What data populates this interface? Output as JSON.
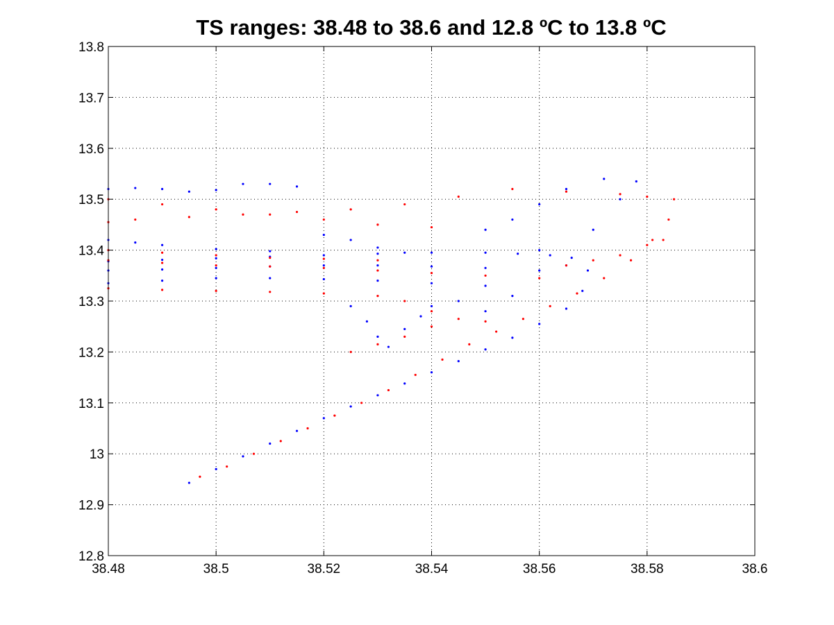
{
  "chart_data": {
    "type": "scatter",
    "title": "TS ranges: 38.48 to 38.6 and 12.8 ºC to 13.8 ºC",
    "xlabel": "",
    "ylabel": "",
    "xlim": [
      38.48,
      38.6
    ],
    "ylim": [
      12.8,
      13.8
    ],
    "x_ticks": [
      38.48,
      38.5,
      38.52,
      38.54,
      38.56,
      38.58,
      38.6
    ],
    "x_tick_labels": [
      "38.48",
      "38.5",
      "38.52",
      "38.54",
      "38.56",
      "38.58",
      "38.6"
    ],
    "y_ticks": [
      12.8,
      12.9,
      13.0,
      13.1,
      13.2,
      13.3,
      13.4,
      13.5,
      13.6,
      13.7,
      13.8
    ],
    "y_tick_labels": [
      "12.8",
      "12.9",
      "13",
      "13.1",
      "13.2",
      "13.3",
      "13.4",
      "13.5",
      "13.6",
      "13.7",
      "13.8"
    ],
    "grid": true,
    "series": [
      {
        "color": "#0000ff",
        "points": [
          [
            38.495,
            12.943
          ],
          [
            38.5,
            12.97
          ],
          [
            38.505,
            12.995
          ],
          [
            38.51,
            13.02
          ],
          [
            38.515,
            13.045
          ],
          [
            38.52,
            13.07
          ],
          [
            38.525,
            13.093
          ],
          [
            38.53,
            13.115
          ],
          [
            38.535,
            13.138
          ],
          [
            38.54,
            13.16
          ],
          [
            38.545,
            13.182
          ],
          [
            38.55,
            13.205
          ],
          [
            38.555,
            13.228
          ],
          [
            38.56,
            13.255
          ],
          [
            38.565,
            13.285
          ],
          [
            38.568,
            13.32
          ],
          [
            38.569,
            13.36
          ],
          [
            38.566,
            13.385
          ],
          [
            38.562,
            13.39
          ],
          [
            38.556,
            13.393
          ],
          [
            38.55,
            13.395
          ],
          [
            38.54,
            13.395
          ],
          [
            38.53,
            13.393
          ],
          [
            38.52,
            13.39
          ],
          [
            38.51,
            13.387
          ],
          [
            38.5,
            13.384
          ],
          [
            38.49,
            13.381
          ],
          [
            38.48,
            13.378
          ],
          [
            38.48,
            13.36
          ],
          [
            38.49,
            13.362
          ],
          [
            38.5,
            13.365
          ],
          [
            38.51,
            13.368
          ],
          [
            38.52,
            13.37
          ],
          [
            38.53,
            13.37
          ],
          [
            38.54,
            13.368
          ],
          [
            38.55,
            13.365
          ],
          [
            38.56,
            13.36
          ],
          [
            38.48,
            13.335
          ],
          [
            38.49,
            13.34
          ],
          [
            38.5,
            13.345
          ],
          [
            38.51,
            13.345
          ],
          [
            38.52,
            13.343
          ],
          [
            38.53,
            13.34
          ],
          [
            38.54,
            13.335
          ],
          [
            38.55,
            13.33
          ],
          [
            38.48,
            13.42
          ],
          [
            38.485,
            13.415
          ],
          [
            38.49,
            13.41
          ],
          [
            38.5,
            13.402
          ],
          [
            38.51,
            13.398
          ],
          [
            38.48,
            13.52
          ],
          [
            38.485,
            13.522
          ],
          [
            38.49,
            13.52
          ],
          [
            38.495,
            13.515
          ],
          [
            38.5,
            13.518
          ],
          [
            38.505,
            13.53
          ],
          [
            38.51,
            13.53
          ],
          [
            38.515,
            13.525
          ],
          [
            38.52,
            13.43
          ],
          [
            38.525,
            13.42
          ],
          [
            38.53,
            13.405
          ],
          [
            38.535,
            13.395
          ],
          [
            38.525,
            13.29
          ],
          [
            38.528,
            13.26
          ],
          [
            38.53,
            13.23
          ],
          [
            38.532,
            13.21
          ],
          [
            38.535,
            13.245
          ],
          [
            38.538,
            13.27
          ],
          [
            38.54,
            13.29
          ],
          [
            38.545,
            13.3
          ],
          [
            38.55,
            13.28
          ],
          [
            38.555,
            13.31
          ],
          [
            38.56,
            13.4
          ],
          [
            38.565,
            13.37
          ],
          [
            38.57,
            13.44
          ],
          [
            38.575,
            13.5
          ],
          [
            38.578,
            13.535
          ],
          [
            38.572,
            13.54
          ],
          [
            38.565,
            13.52
          ],
          [
            38.56,
            13.49
          ],
          [
            38.555,
            13.46
          ],
          [
            38.55,
            13.44
          ]
        ]
      },
      {
        "color": "#ff0000",
        "points": [
          [
            38.497,
            12.955
          ],
          [
            38.502,
            12.975
          ],
          [
            38.507,
            13.0
          ],
          [
            38.512,
            13.025
          ],
          [
            38.517,
            13.05
          ],
          [
            38.522,
            13.075
          ],
          [
            38.527,
            13.1
          ],
          [
            38.532,
            13.125
          ],
          [
            38.537,
            13.155
          ],
          [
            38.542,
            13.185
          ],
          [
            38.547,
            13.215
          ],
          [
            38.552,
            13.24
          ],
          [
            38.557,
            13.265
          ],
          [
            38.562,
            13.29
          ],
          [
            38.567,
            13.315
          ],
          [
            38.572,
            13.345
          ],
          [
            38.577,
            13.38
          ],
          [
            38.581,
            13.42
          ],
          [
            38.584,
            13.46
          ],
          [
            38.585,
            13.5
          ],
          [
            38.58,
            13.505
          ],
          [
            38.575,
            13.51
          ],
          [
            38.565,
            13.515
          ],
          [
            38.555,
            13.52
          ],
          [
            38.545,
            13.505
          ],
          [
            38.535,
            13.49
          ],
          [
            38.525,
            13.48
          ],
          [
            38.515,
            13.475
          ],
          [
            38.505,
            13.47
          ],
          [
            38.495,
            13.465
          ],
          [
            38.485,
            13.46
          ],
          [
            38.48,
            13.455
          ],
          [
            38.48,
            13.5
          ],
          [
            38.49,
            13.49
          ],
          [
            38.5,
            13.48
          ],
          [
            38.51,
            13.47
          ],
          [
            38.52,
            13.46
          ],
          [
            38.53,
            13.45
          ],
          [
            38.54,
            13.445
          ],
          [
            38.48,
            13.4
          ],
          [
            38.49,
            13.395
          ],
          [
            38.5,
            13.39
          ],
          [
            38.51,
            13.385
          ],
          [
            38.52,
            13.383
          ],
          [
            38.53,
            13.38
          ],
          [
            38.48,
            13.38
          ],
          [
            38.49,
            13.375
          ],
          [
            38.5,
            13.37
          ],
          [
            38.51,
            13.368
          ],
          [
            38.52,
            13.365
          ],
          [
            38.53,
            13.36
          ],
          [
            38.54,
            13.355
          ],
          [
            38.55,
            13.35
          ],
          [
            38.56,
            13.345
          ],
          [
            38.48,
            13.325
          ],
          [
            38.49,
            13.322
          ],
          [
            38.5,
            13.32
          ],
          [
            38.51,
            13.318
          ],
          [
            38.52,
            13.315
          ],
          [
            38.53,
            13.31
          ],
          [
            38.535,
            13.3
          ],
          [
            38.54,
            13.28
          ],
          [
            38.545,
            13.265
          ],
          [
            38.55,
            13.26
          ],
          [
            38.525,
            13.2
          ],
          [
            38.53,
            13.215
          ],
          [
            38.535,
            13.23
          ],
          [
            38.54,
            13.25
          ],
          [
            38.565,
            13.37
          ],
          [
            38.57,
            13.38
          ],
          [
            38.575,
            13.39
          ],
          [
            38.58,
            13.41
          ],
          [
            38.583,
            13.42
          ]
        ]
      }
    ]
  }
}
